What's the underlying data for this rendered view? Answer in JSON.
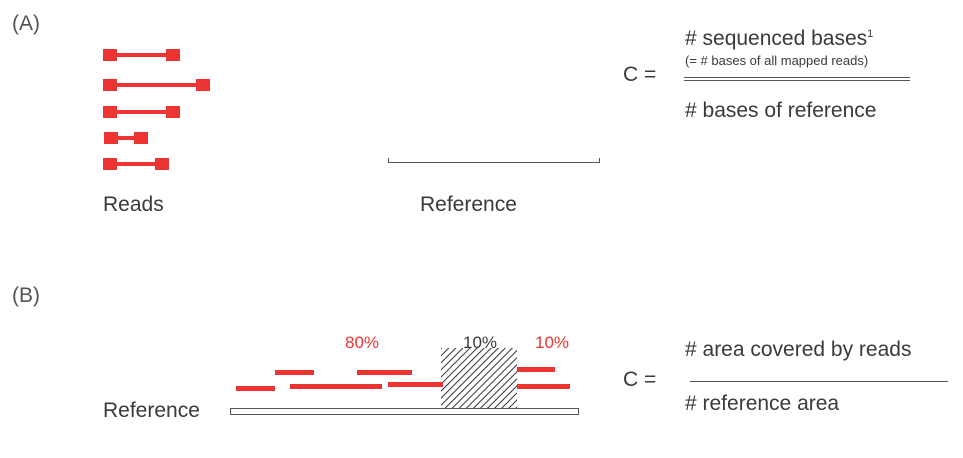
{
  "panel_a": {
    "label": "(A)",
    "reads_label": "Reads",
    "reference_label": "Reference",
    "formula": {
      "c_eq": "C =",
      "numerator": "# sequenced bases",
      "numerator_sup": "1",
      "note": "(= # bases of all mapped reads)",
      "denominator": "# bases of reference"
    }
  },
  "panel_b": {
    "label": "(B)",
    "reference_label": "Reference",
    "pct_left": "80%",
    "pct_mid": "10%",
    "pct_right": "10%",
    "formula": {
      "c_eq": "C =",
      "numerator": "# area covered by reads",
      "denominator": "# reference area"
    }
  },
  "colors": {
    "read": "#ee3333",
    "text": "#3a3a3a"
  }
}
